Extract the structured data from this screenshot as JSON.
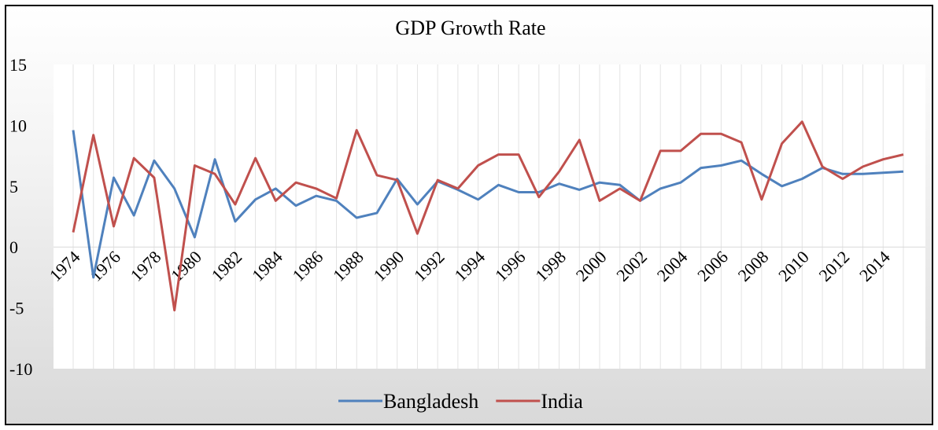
{
  "chart_data": {
    "type": "line",
    "title": "GDP Growth Rate",
    "xlabel": "",
    "ylabel": "",
    "x": [
      1974,
      1975,
      1976,
      1977,
      1978,
      1979,
      1980,
      1981,
      1982,
      1983,
      1984,
      1985,
      1986,
      1987,
      1988,
      1989,
      1990,
      1991,
      1992,
      1993,
      1994,
      1995,
      1996,
      1997,
      1998,
      1999,
      2000,
      2001,
      2002,
      2003,
      2004,
      2005,
      2006,
      2007,
      2008,
      2009,
      2010,
      2011,
      2012,
      2013,
      2014,
      2015
    ],
    "x_tick_labels": [
      "1974",
      "1976",
      "1978",
      "1980",
      "1982",
      "1984",
      "1986",
      "1988",
      "1990",
      "1992",
      "1994",
      "1996",
      "1998",
      "2000",
      "2002",
      "2004",
      "2006",
      "2008",
      "2010",
      "2012",
      "2014"
    ],
    "y_ticks": [
      15,
      10,
      5,
      0,
      -5,
      -10
    ],
    "ylim": [
      -10,
      15
    ],
    "grid": "vertical lines at each year",
    "legend_position": "bottom",
    "series": [
      {
        "name": "Bangladesh",
        "color": "#4f81bd",
        "values": [
          9.6,
          -2.5,
          5.7,
          2.6,
          7.1,
          4.8,
          0.8,
          7.2,
          2.1,
          3.9,
          4.8,
          3.4,
          4.2,
          3.8,
          2.4,
          2.8,
          5.6,
          3.5,
          5.4,
          4.7,
          3.9,
          5.1,
          4.5,
          4.5,
          5.2,
          4.7,
          5.3,
          5.1,
          3.8,
          4.8,
          5.3,
          6.5,
          6.7,
          7.1,
          6.0,
          5.0,
          5.6,
          6.5,
          6.0,
          6.0,
          6.1,
          6.2
        ]
      },
      {
        "name": "India",
        "color": "#c0504d",
        "values": [
          1.2,
          9.2,
          1.7,
          7.3,
          5.7,
          -5.2,
          6.7,
          6.0,
          3.5,
          7.3,
          3.8,
          5.3,
          4.8,
          4.0,
          9.6,
          5.9,
          5.5,
          1.1,
          5.5,
          4.8,
          6.7,
          7.6,
          7.6,
          4.1,
          6.2,
          8.8,
          3.8,
          4.8,
          3.8,
          7.9,
          7.9,
          9.3,
          9.3,
          8.6,
          3.9,
          8.5,
          10.3,
          6.6,
          5.6,
          6.6,
          7.2,
          7.6
        ]
      }
    ]
  }
}
